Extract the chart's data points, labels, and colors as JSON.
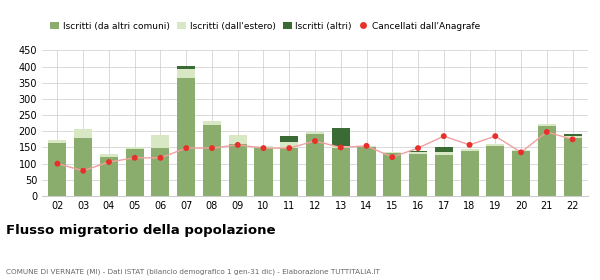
{
  "years": [
    "02",
    "03",
    "04",
    "05",
    "06",
    "07",
    "08",
    "09",
    "10",
    "11",
    "12",
    "13",
    "14",
    "15",
    "16",
    "17",
    "18",
    "19",
    "20",
    "21",
    "22"
  ],
  "iscritti_altri_comuni": [
    165,
    178,
    120,
    145,
    148,
    365,
    218,
    162,
    148,
    148,
    193,
    148,
    150,
    132,
    130,
    128,
    140,
    155,
    138,
    215,
    178
  ],
  "iscritti_estero": [
    8,
    30,
    10,
    5,
    42,
    28,
    15,
    28,
    5,
    18,
    5,
    5,
    5,
    5,
    5,
    8,
    5,
    5,
    5,
    8,
    8
  ],
  "iscritti_altri": [
    0,
    0,
    0,
    0,
    0,
    8,
    0,
    0,
    0,
    18,
    0,
    58,
    0,
    0,
    5,
    15,
    0,
    0,
    0,
    0,
    5
  ],
  "cancellati": [
    100,
    78,
    105,
    118,
    118,
    148,
    148,
    158,
    148,
    148,
    170,
    150,
    155,
    120,
    148,
    185,
    158,
    185,
    135,
    198,
    175
  ],
  "color_altri_comuni": "#8aad6e",
  "color_estero": "#d9e8c4",
  "color_altri": "#3a6b35",
  "color_cancellati": "#e8302a",
  "color_line": "#f0a0a0",
  "ylim": [
    0,
    450
  ],
  "yticks": [
    0,
    50,
    100,
    150,
    200,
    250,
    300,
    350,
    400,
    450
  ],
  "title": "Flusso migratorio della popolazione",
  "subtitle": "COMUNE DI VERNATE (MI) - Dati ISTAT (bilancio demografico 1 gen-31 dic) - Elaborazione TUTTITALIA.IT",
  "legend_labels": [
    "Iscritti (da altri comuni)",
    "Iscritti (dall'estero)",
    "Iscritti (altri)",
    "Cancellati dall'Anagrafe"
  ]
}
